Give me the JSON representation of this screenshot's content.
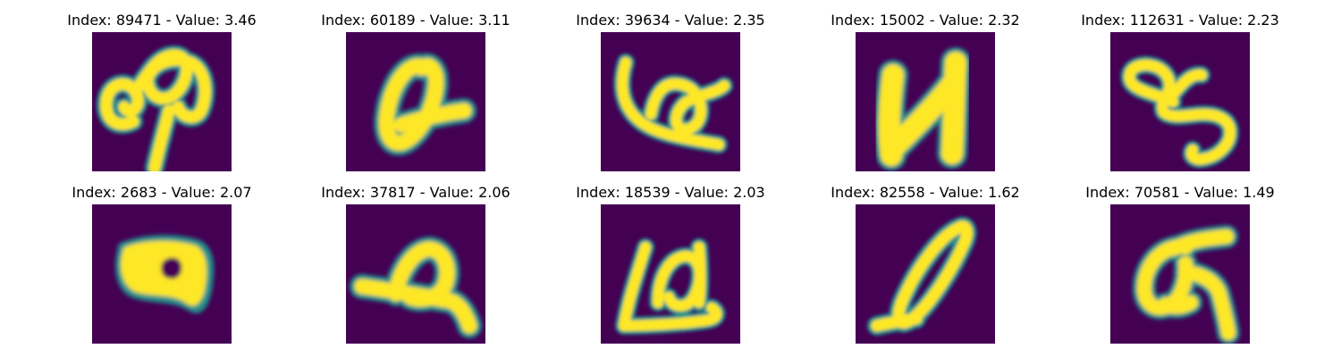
{
  "colors": {
    "background": "#440154",
    "mid": "#21918c",
    "stroke": "#fde725"
  },
  "samples": [
    {
      "title": "Index: 89471 - Value: 3.46",
      "index": 89471,
      "value": 3.46
    },
    {
      "title": "Index: 60189 - Value: 3.11",
      "index": 60189,
      "value": 3.11
    },
    {
      "title": "Index: 39634 - Value: 2.35",
      "index": 39634,
      "value": 2.35
    },
    {
      "title": "Index: 15002 - Value: 2.32",
      "index": 15002,
      "value": 2.32
    },
    {
      "title": "Index: 112631 - Value: 2.23",
      "index": 112631,
      "value": 2.23
    },
    {
      "title": "Index: 2683 - Value: 2.07",
      "index": 2683,
      "value": 2.07
    },
    {
      "title": "Index: 37817 - Value: 2.06",
      "index": 37817,
      "value": 2.06
    },
    {
      "title": "Index: 18539 - Value: 2.03",
      "index": 18539,
      "value": 2.03
    },
    {
      "title": "Index: 82558 - Value: 1.62",
      "index": 82558,
      "value": 1.62
    },
    {
      "title": "Index: 70581 - Value: 1.49",
      "index": 70581,
      "value": 1.49
    }
  ]
}
